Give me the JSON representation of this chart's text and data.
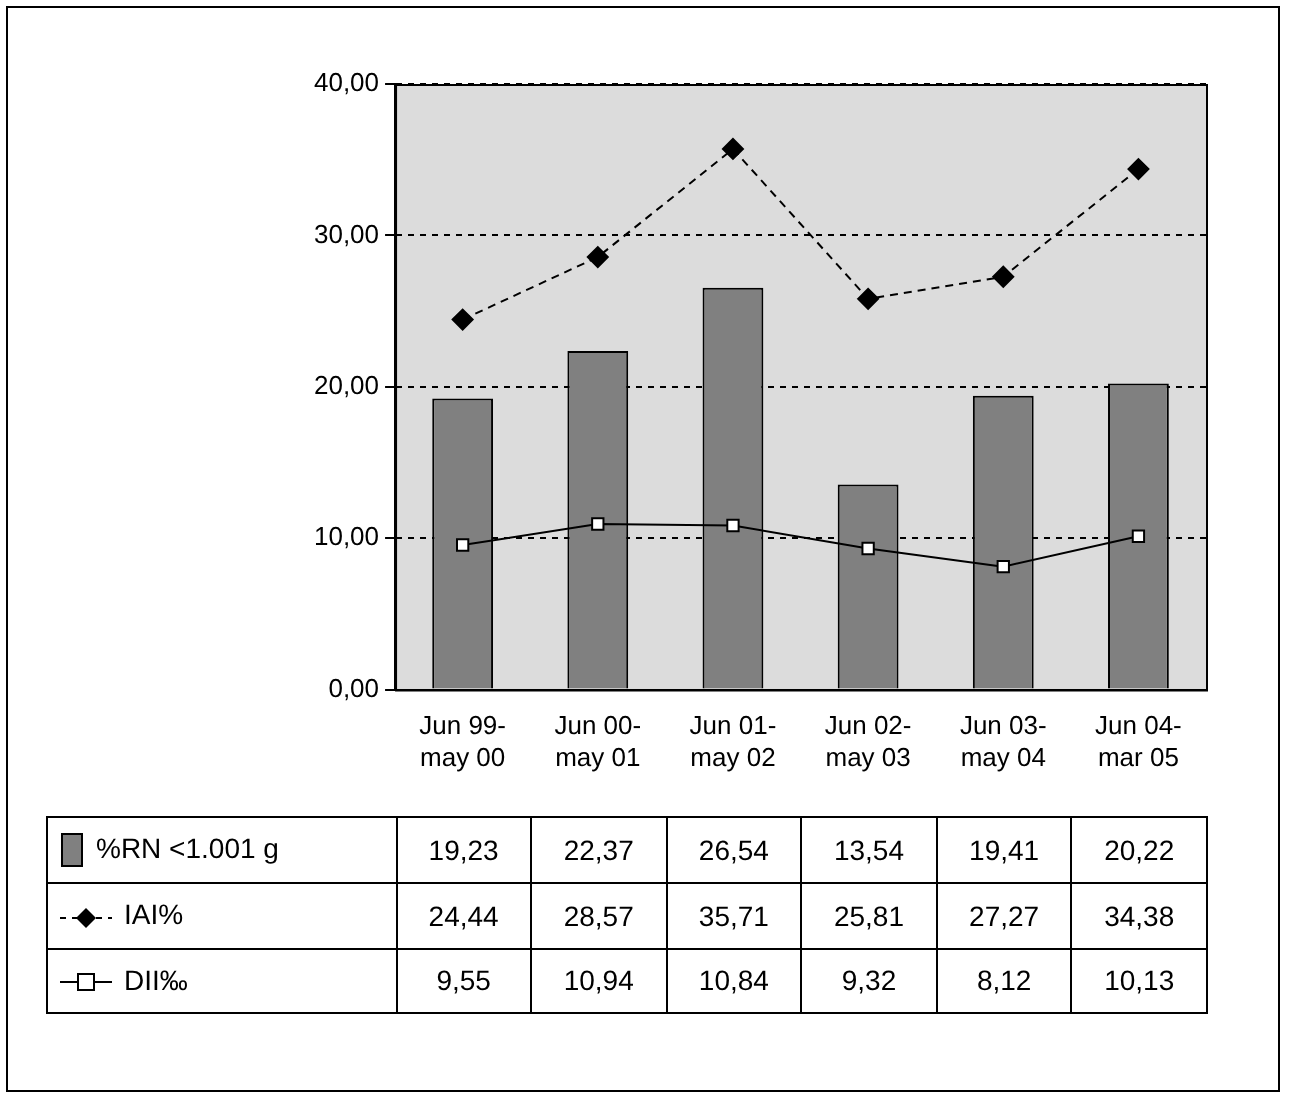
{
  "chart_data": {
    "type": "bar",
    "categories": [
      "Jun 99-\nmay 00",
      "Jun 00-\nmay 01",
      "Jun 01-\nmay 02",
      "Jun 02-\nmay 03",
      "Jun 03-\nmay 04",
      "Jun 04-\nmar 05"
    ],
    "series": [
      {
        "name": "%RN <1.001 g",
        "color": "#808080",
        "values": [
          19.23,
          22.37,
          26.54,
          13.54,
          19.41,
          20.22
        ],
        "value_labels": [
          "19,23",
          "22,37",
          "26,54",
          "13,54",
          "19,41",
          "20,22"
        ]
      },
      {
        "name": "IAI%",
        "type": "line",
        "color": "#000000",
        "marker": "diamond",
        "line_style": "dashed",
        "values": [
          24.44,
          28.57,
          35.71,
          25.81,
          27.27,
          34.38
        ],
        "value_labels": [
          "24,44",
          "28,57",
          "35,71",
          "25,81",
          "27,27",
          "34,38"
        ]
      },
      {
        "name": "DII‰",
        "type": "line",
        "color": "#000000",
        "marker": "square",
        "line_style": "solid",
        "values": [
          9.55,
          10.94,
          10.84,
          9.32,
          8.12,
          10.13
        ],
        "value_labels": [
          "9,55",
          "10,94",
          "10,84",
          "9,32",
          "8,12",
          "10,13"
        ]
      }
    ],
    "ylim": [
      0,
      40
    ],
    "yticks": [
      {
        "value": 0,
        "label": "0,00"
      },
      {
        "value": 10,
        "label": "10,00"
      },
      {
        "value": 20,
        "label": "20,00"
      },
      {
        "value": 30,
        "label": "30,00"
      },
      {
        "value": 40,
        "label": "40,00"
      }
    ],
    "grid": "y",
    "legend": "bottom"
  }
}
